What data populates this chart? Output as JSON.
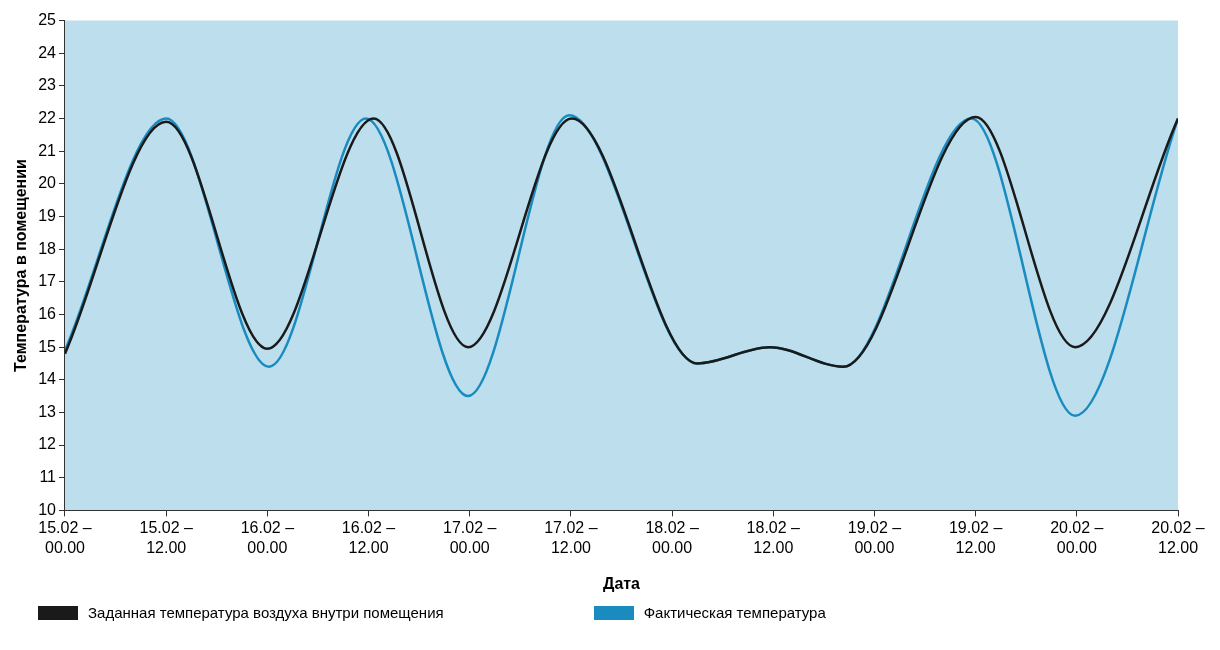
{
  "chart_data": {
    "type": "line",
    "xlabel": "Дата",
    "ylabel": "Температура в помещении",
    "xlim": [
      "--02-15T00:00",
      "--02-20T12:00"
    ],
    "xticks": [
      {
        "value": "--02-15T00:00",
        "label": "15.02 – 00.00"
      },
      {
        "value": "--02-15T12:00",
        "label": "15.02 – 12.00"
      },
      {
        "value": "--02-16T00:00",
        "label": "16.02 – 00.00"
      },
      {
        "value": "--02-16T12:00",
        "label": "16.02 – 12.00"
      },
      {
        "value": "--02-17T00:00",
        "label": "17.02 – 00.00"
      },
      {
        "value": "--02-17T12:00",
        "label": "17.02 – 12.00"
      },
      {
        "value": "--02-18T00:00",
        "label": "18.02 – 00.00"
      },
      {
        "value": "--02-18T12:00",
        "label": "18.02 – 12.00"
      },
      {
        "value": "--02-19T00:00",
        "label": "19.02 – 00.00"
      },
      {
        "value": "--02-19T12:00",
        "label": "19.02 – 12.00"
      },
      {
        "value": "--02-20T00:00",
        "label": "20.02 – 00.00"
      },
      {
        "value": "--02-20T12:00",
        "label": "20.02 – 12.00"
      }
    ],
    "ylim": [
      10,
      25
    ],
    "yticks": [
      10,
      11,
      12,
      13,
      14,
      15,
      16,
      17,
      18,
      19,
      20,
      21,
      22,
      23,
      24,
      25
    ],
    "x": [
      "--02-15T00:00",
      "--02-15T12:00",
      "--02-16T00:00",
      "--02-16T12:36",
      "--02-16T23:48",
      "--02-17T12:06",
      "--02-18T03:00",
      "--02-18T11:36",
      "--02-18T20:18",
      "--02-19T12:00",
      "--02-19T23:48",
      "--02-20T12:00"
    ],
    "series": [
      {
        "name": "Заданная температура воздуха внутри помещения",
        "color": "#1a1a1a",
        "values": [
          14.8,
          21.9,
          14.95,
          22.0,
          15.0,
          22.0,
          14.5,
          15.0,
          14.4,
          22.05,
          15.0,
          22.0
        ]
      },
      {
        "name": "Фактическая температура",
        "color": "#1a8bbf",
        "x": [
          "--02-15T00:00",
          "--02-15T12:00",
          "--02-16T00:12",
          "--02-16T11:42",
          "--02-16T23:48",
          "--02-17T11:48",
          "--02-18T03:00",
          "--02-18T11:36",
          "--02-18T20:18",
          "--02-19T11:30",
          "--02-19T23:48",
          "--02-20T12:00"
        ],
        "values": [
          14.9,
          22.0,
          14.4,
          22.0,
          13.5,
          22.1,
          14.5,
          15.0,
          14.4,
          22.0,
          12.9,
          22.0
        ]
      }
    ],
    "legend": "bottom",
    "grid": false,
    "marker": "none",
    "line_style": "solid"
  }
}
